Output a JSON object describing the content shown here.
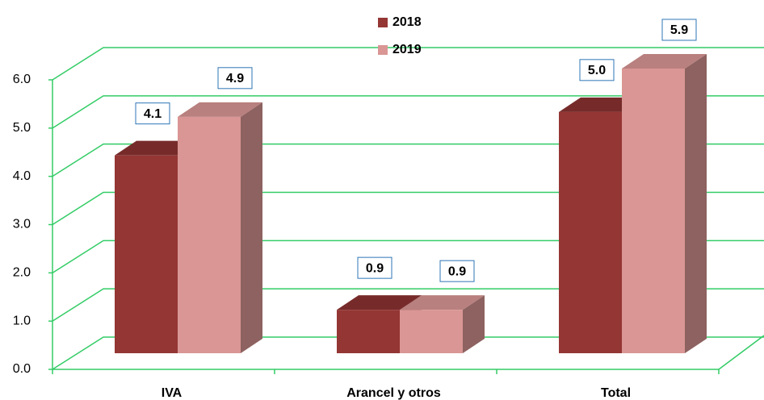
{
  "chart_data": {
    "type": "bar3d",
    "categories": [
      "IVA",
      "Arancel y otros",
      "Total"
    ],
    "series": [
      {
        "name": "2018",
        "color": "#943634",
        "values": [
          4.1,
          0.9,
          5.0
        ],
        "value_labels": [
          "4.1",
          "0.9",
          "5.0"
        ]
      },
      {
        "name": "2019",
        "color": "#d99694",
        "values": [
          4.9,
          0.9,
          5.9
        ],
        "value_labels": [
          "4.9",
          "0.9",
          "5.9"
        ]
      }
    ],
    "ylim": [
      0,
      6
    ],
    "yticks": [
      {
        "value": 0,
        "label": "0.0"
      },
      {
        "value": 1,
        "label": "1.0"
      },
      {
        "value": 2,
        "label": "2.0"
      },
      {
        "value": 3,
        "label": "3.0"
      },
      {
        "value": 4,
        "label": "4.0"
      },
      {
        "value": 5,
        "label": "5.0"
      },
      {
        "value": 6,
        "label": "6.0"
      }
    ],
    "grid": true,
    "grid_color": "#33cc66",
    "legend": "top"
  }
}
